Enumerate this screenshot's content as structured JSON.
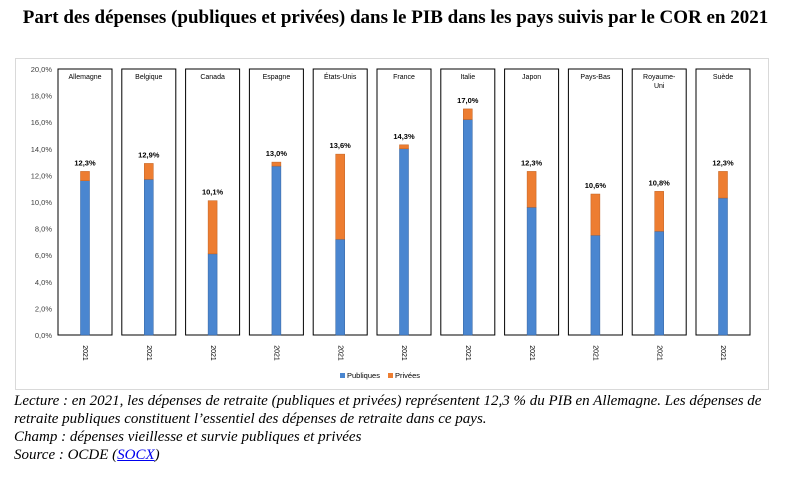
{
  "title": "Part des dépenses (publiques et privées) dans le PIB dans les pays suivis par le COR en 2021",
  "notes": {
    "lecture": "Lecture : en 2021, les dépenses de retraite (publiques et privées) représentent 12,3 % du PIB en Allemagne. Les dépenses de retraite publiques constituent l’essentiel des dépenses de retraite dans ce pays.",
    "champ": "Champ : dépenses vieillesse et survie publiques et privées",
    "source_prefix": "Source : OCDE (",
    "source_link": "SOCX",
    "source_suffix": ")"
  },
  "chart_data": {
    "type": "bar",
    "stacked": true,
    "categories": [
      "Allemagne",
      "Belgique",
      "Canada",
      "Espagne",
      "États-Unis",
      "France",
      "Italie",
      "Japon",
      "Pays-Bas",
      "Royaume-Uni",
      "Suède"
    ],
    "category_lines": [
      [
        "Allemagne"
      ],
      [
        "Belgique"
      ],
      [
        "Canada"
      ],
      [
        "Espagne"
      ],
      [
        "États-Unis"
      ],
      [
        "France"
      ],
      [
        "Italie"
      ],
      [
        "Japon"
      ],
      [
        "Pays-Bas"
      ],
      [
        "Royaume-",
        "Uni"
      ],
      [
        "Suède"
      ]
    ],
    "x_sublabel": "2021",
    "series": [
      {
        "name": "Publiques",
        "color": "#4a86d0",
        "values": [
          11.6,
          11.7,
          6.1,
          12.7,
          7.2,
          14.0,
          16.2,
          9.6,
          7.5,
          7.8,
          10.3
        ]
      },
      {
        "name": "Privées",
        "color": "#ed7d31",
        "values": [
          0.7,
          1.2,
          4.0,
          0.3,
          6.4,
          0.3,
          0.8,
          2.7,
          3.1,
          3.0,
          2.0
        ]
      }
    ],
    "total_labels": [
      "12,3%",
      "12,9%",
      "10,1%",
      "13,0%",
      "13,6%",
      "14,3%",
      "17,0%",
      "12,3%",
      "10,6%",
      "10,8%",
      "12,3%"
    ],
    "ylim": [
      0,
      20
    ],
    "yticks": [
      0,
      2,
      4,
      6,
      8,
      10,
      12,
      14,
      16,
      18,
      20
    ],
    "ytick_labels": [
      "0,0%",
      "2,0%",
      "4,0%",
      "6,0%",
      "8,0%",
      "10,0%",
      "12,0%",
      "14,0%",
      "16,0%",
      "18,0%",
      "20,0%"
    ],
    "legend_position": "bottom",
    "grid": false
  }
}
